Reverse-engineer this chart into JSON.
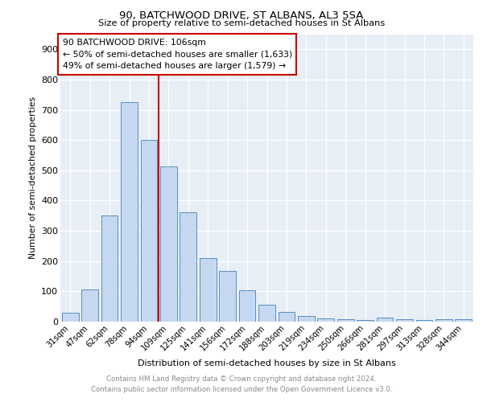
{
  "title1": "90, BATCHWOOD DRIVE, ST ALBANS, AL3 5SA",
  "title2": "Size of property relative to semi-detached houses in St Albans",
  "xlabel": "Distribution of semi-detached houses by size in St Albans",
  "ylabel": "Number of semi-detached properties",
  "categories": [
    "31sqm",
    "47sqm",
    "62sqm",
    "78sqm",
    "94sqm",
    "109sqm",
    "125sqm",
    "141sqm",
    "156sqm",
    "172sqm",
    "188sqm",
    "203sqm",
    "219sqm",
    "234sqm",
    "250sqm",
    "266sqm",
    "281sqm",
    "297sqm",
    "313sqm",
    "328sqm",
    "344sqm"
  ],
  "values": [
    28,
    106,
    350,
    725,
    600,
    513,
    362,
    210,
    167,
    104,
    55,
    32,
    18,
    10,
    8,
    5,
    12,
    8,
    5,
    7,
    7
  ],
  "bar_color": "#c5d8f0",
  "bar_edge_color": "#5a8fc3",
  "vline_x": 4.5,
  "vline_color": "#cc0000",
  "annotation_title": "90 BATCHWOOD DRIVE: 106sqm",
  "annotation_line1": "← 50% of semi-detached houses are smaller (1,633)",
  "annotation_line2": "49% of semi-detached houses are larger (1,579) →",
  "annotation_box_color": "#cc0000",
  "annotation_bg": "#ffffff",
  "ylim": [
    0,
    950
  ],
  "yticks": [
    0,
    100,
    200,
    300,
    400,
    500,
    600,
    700,
    800,
    900
  ],
  "footer1": "Contains HM Land Registry data © Crown copyright and database right 2024.",
  "footer2": "Contains public sector information licensed under the Open Government Licence v3.0.",
  "plot_bg_color": "#e8eef6"
}
